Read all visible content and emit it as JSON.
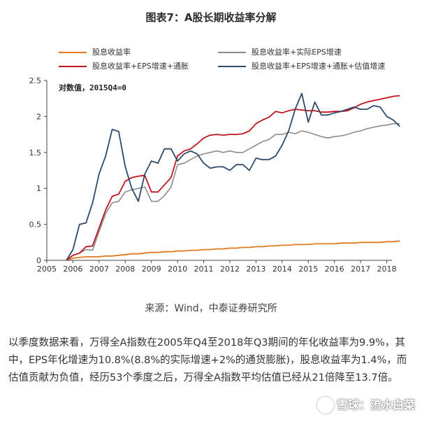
{
  "title": "图表7：A股长期收益率分解",
  "note": "对数值，2015Q4=0",
  "source": "来源：Wind，中泰证券研究所",
  "body_text": "以季度数据来看，万得全A指数在2005年Q4至2018年Q3期间的年化收益率为9.9%，其中，EPS年化增速为10.8%(8.8%的实际增速+2%的通货膨胀)，股息收益率为1.4%，而估值贡献为负值，经历53个季度之后，万得全A指数平均估值已经从21倍降至13.7倍。",
  "watermark": "雪球：流水白菜",
  "chart_data": {
    "type": "line",
    "x": [
      2005.75,
      2006.0,
      2006.25,
      2006.5,
      2006.75,
      2007.0,
      2007.25,
      2007.5,
      2007.75,
      2008.0,
      2008.25,
      2008.5,
      2008.75,
      2009.0,
      2009.25,
      2009.5,
      2009.75,
      2010.0,
      2010.25,
      2010.5,
      2010.75,
      2011.0,
      2011.25,
      2011.5,
      2011.75,
      2012.0,
      2012.25,
      2012.5,
      2012.75,
      2013.0,
      2013.25,
      2013.5,
      2013.75,
      2014.0,
      2014.25,
      2014.5,
      2014.75,
      2015.0,
      2015.25,
      2015.5,
      2015.75,
      2016.0,
      2016.25,
      2016.5,
      2016.75,
      2017.0,
      2017.25,
      2017.5,
      2017.75,
      2018.0,
      2018.25,
      2018.5
    ],
    "xticks": [
      "2005",
      "2006",
      "2007",
      "2008",
      "2009",
      "2010",
      "2011",
      "2012",
      "2013",
      "2014",
      "2015",
      "2016",
      "2017",
      "2018"
    ],
    "xlim": [
      2005,
      2018.2
    ],
    "ylim": [
      0,
      2.5
    ],
    "yticks": [
      "0",
      "0.5",
      "1",
      "1.5",
      "2",
      "2.5"
    ],
    "legend_position": "top",
    "series": [
      {
        "name": "股息收益率",
        "color": "#E07A1F",
        "values": [
          0.0,
          0.03,
          0.04,
          0.05,
          0.05,
          0.05,
          0.06,
          0.06,
          0.07,
          0.08,
          0.09,
          0.09,
          0.1,
          0.11,
          0.11,
          0.12,
          0.12,
          0.13,
          0.13,
          0.14,
          0.14,
          0.15,
          0.15,
          0.16,
          0.16,
          0.17,
          0.17,
          0.18,
          0.18,
          0.19,
          0.19,
          0.2,
          0.2,
          0.21,
          0.21,
          0.22,
          0.22,
          0.22,
          0.23,
          0.23,
          0.23,
          0.23,
          0.24,
          0.24,
          0.24,
          0.25,
          0.25,
          0.25,
          0.25,
          0.26,
          0.26,
          0.27
        ]
      },
      {
        "name": "股息收益率+实际EPS增速",
        "color": "#8C8C8C",
        "values": [
          0.0,
          0.07,
          0.1,
          0.15,
          0.14,
          0.4,
          0.65,
          0.8,
          0.82,
          0.95,
          0.98,
          1.0,
          1.02,
          0.82,
          0.82,
          0.9,
          1.02,
          1.33,
          1.35,
          1.4,
          1.45,
          1.48,
          1.5,
          1.52,
          1.5,
          1.52,
          1.5,
          1.5,
          1.55,
          1.6,
          1.65,
          1.68,
          1.75,
          1.75,
          1.78,
          1.76,
          1.8,
          1.78,
          1.75,
          1.72,
          1.7,
          1.72,
          1.73,
          1.75,
          1.78,
          1.8,
          1.83,
          1.85,
          1.87,
          1.88,
          1.9,
          1.9
        ]
      },
      {
        "name": "股息收益率+EPS增速+通胀",
        "color": "#C0141E",
        "values": [
          0.0,
          0.07,
          0.1,
          0.19,
          0.2,
          0.45,
          0.7,
          0.89,
          0.92,
          1.1,
          1.15,
          1.17,
          1.18,
          0.95,
          0.95,
          1.05,
          1.15,
          1.45,
          1.52,
          1.55,
          1.62,
          1.7,
          1.74,
          1.75,
          1.74,
          1.75,
          1.75,
          1.76,
          1.8,
          1.9,
          1.95,
          1.99,
          2.07,
          2.05,
          2.08,
          2.1,
          2.09,
          2.08,
          2.08,
          2.06,
          2.06,
          2.07,
          2.07,
          2.08,
          2.12,
          2.17,
          2.2,
          2.22,
          2.24,
          2.26,
          2.28,
          2.29
        ]
      },
      {
        "name": "股息收益率+EPS增速+通胀+估值增速",
        "color": "#2E4A6B",
        "values": [
          0.0,
          0.15,
          0.5,
          0.52,
          0.8,
          1.2,
          1.45,
          1.82,
          1.79,
          1.3,
          1.0,
          0.82,
          1.2,
          1.38,
          1.35,
          1.55,
          1.55,
          1.38,
          1.48,
          1.52,
          1.48,
          1.35,
          1.28,
          1.3,
          1.3,
          1.25,
          1.33,
          1.33,
          1.25,
          1.42,
          1.4,
          1.4,
          1.45,
          1.6,
          1.8,
          2.1,
          2.32,
          1.92,
          2.2,
          2.02,
          2.02,
          2.05,
          2.07,
          2.1,
          2.13,
          2.1,
          2.1,
          2.15,
          2.13,
          2.0,
          1.95,
          1.86
        ]
      }
    ]
  }
}
